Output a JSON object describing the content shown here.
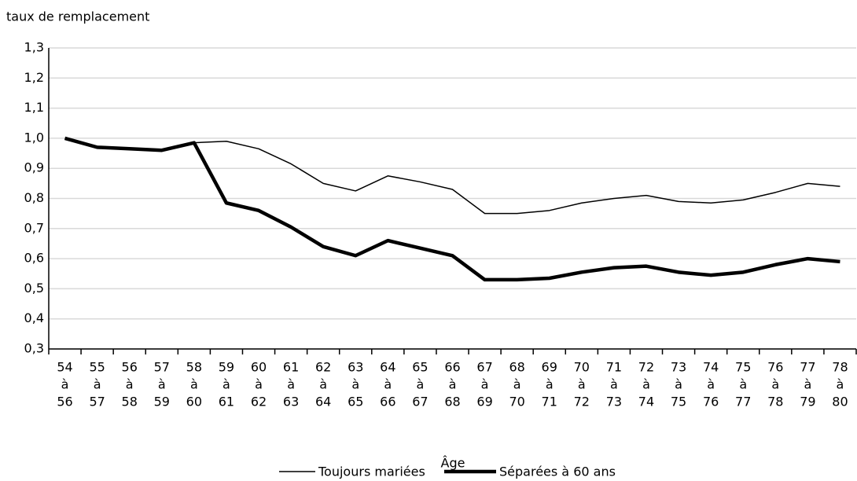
{
  "chart_data": {
    "type": "line",
    "y_axis_label": "taux de remplacement",
    "x_axis_label": "Âge",
    "categories": [
      [
        "54",
        "à",
        "56"
      ],
      [
        "55",
        "à",
        "57"
      ],
      [
        "56",
        "à",
        "58"
      ],
      [
        "57",
        "à",
        "59"
      ],
      [
        "58",
        "à",
        "60"
      ],
      [
        "59",
        "à",
        "61"
      ],
      [
        "60",
        "à",
        "62"
      ],
      [
        "61",
        "à",
        "63"
      ],
      [
        "62",
        "à",
        "64"
      ],
      [
        "63",
        "à",
        "65"
      ],
      [
        "64",
        "à",
        "66"
      ],
      [
        "65",
        "à",
        "67"
      ],
      [
        "66",
        "à",
        "68"
      ],
      [
        "67",
        "à",
        "69"
      ],
      [
        "68",
        "à",
        "70"
      ],
      [
        "69",
        "à",
        "71"
      ],
      [
        "70",
        "à",
        "72"
      ],
      [
        "71",
        "à",
        "73"
      ],
      [
        "72",
        "à",
        "74"
      ],
      [
        "73",
        "à",
        "75"
      ],
      [
        "74",
        "à",
        "76"
      ],
      [
        "75",
        "à",
        "77"
      ],
      [
        "76",
        "à",
        "78"
      ],
      [
        "77",
        "à",
        "79"
      ],
      [
        "78",
        "à",
        "80"
      ]
    ],
    "series": [
      {
        "name": "Toujours mariées",
        "color": "#000000",
        "width": 1.5,
        "values": [
          1.0,
          0.97,
          0.965,
          0.96,
          0.985,
          0.99,
          0.965,
          0.915,
          0.85,
          0.825,
          0.875,
          0.855,
          0.83,
          0.75,
          0.75,
          0.76,
          0.785,
          0.8,
          0.81,
          0.79,
          0.785,
          0.795,
          0.82,
          0.85,
          0.84
        ]
      },
      {
        "name": "Séparées à 60 ans",
        "color": "#000000",
        "width": 4.5,
        "values": [
          1.0,
          0.97,
          0.965,
          0.96,
          0.985,
          0.785,
          0.76,
          0.705,
          0.64,
          0.61,
          0.66,
          0.635,
          0.61,
          0.53,
          0.53,
          0.535,
          0.555,
          0.57,
          0.575,
          0.555,
          0.545,
          0.555,
          0.58,
          0.6,
          0.59
        ]
      }
    ],
    "ylim": [
      0.3,
      1.3
    ],
    "yticks": [
      {
        "value": 0.3,
        "label": "0,3"
      },
      {
        "value": 0.4,
        "label": "0,4"
      },
      {
        "value": 0.5,
        "label": "0,5"
      },
      {
        "value": 0.6,
        "label": "0,6"
      },
      {
        "value": 0.7,
        "label": "0,7"
      },
      {
        "value": 0.8,
        "label": "0,8"
      },
      {
        "value": 0.9,
        "label": "0,9"
      },
      {
        "value": 1.0,
        "label": "1,0"
      },
      {
        "value": 1.1,
        "label": "1,1"
      },
      {
        "value": 1.2,
        "label": "1,2"
      },
      {
        "value": 1.3,
        "label": "1,3"
      }
    ],
    "grid": true,
    "legend": "bottom"
  }
}
